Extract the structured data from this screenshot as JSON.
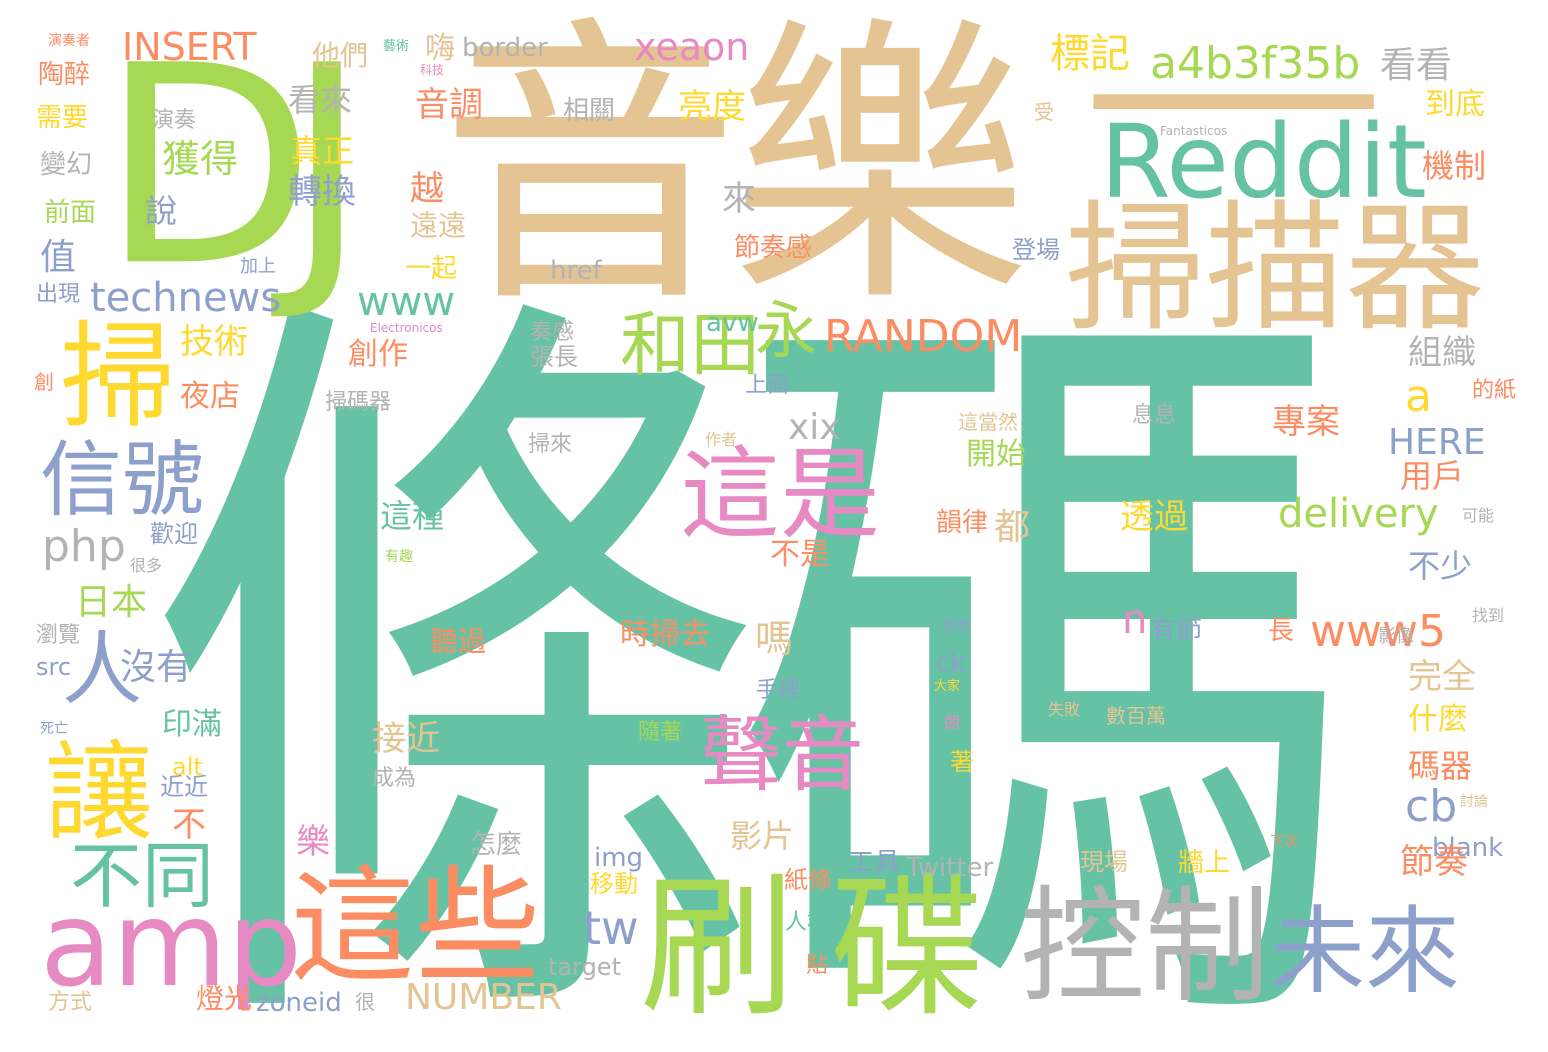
{
  "title": "",
  "colors": {
    "teal": "#66c2a5",
    "tan": "#e5c494",
    "green": "#a6d854",
    "orange": "#fc8d62",
    "blue": "#8da0cb",
    "pink": "#e78ac3",
    "yellow": "#ffd92f",
    "gray": "#b3b3b3"
  },
  "words": {
    "tiaoma": "條碼",
    "yinyue": "音樂",
    "dj": "DJ",
    "yi": "一",
    "saomiaoqi": "掃描器",
    "reddit": "Reddit",
    "shua": "刷",
    "die": "碟",
    "kongzhi": "控制",
    "weilai": "未來",
    "zhexie": "這些",
    "amp": "amp",
    "zheshi": "這是",
    "shengyin": "聲音",
    "sao": "掃",
    "xinhao": "信號",
    "rang": "讓",
    "butong": "不同",
    "ren": "人",
    "hetian": "和田",
    "yong": "永",
    "technews": "technews",
    "www": "www",
    "random": "RANDOM",
    "insert": "INSERT",
    "xeaon": "xeaon",
    "a4b3f35b": "a4b3f35b",
    "kankan": "看看",
    "biaoji": "標記",
    "delivery": "delivery",
    "www5": "www5",
    "number": "NUMBER",
    "php": "php",
    "tw": "tw",
    "cb": "cb",
    "here": "HERE",
    "xix": "xix",
    "a_letter": "a",
    "n_letter": "n",
    "border": "border",
    "href": "href",
    "avw": "avw",
    "target": "target",
    "zoneid": "zoneid",
    "twitter": "Twitter",
    "img": "img",
    "blank": "blank",
    "src": "src",
    "alt": "alt",
    "ck": "ck",
    "fantasticos": "Fantasticos",
    "electronicos": "Electronicos",
    "misc": [
      "演奏者",
      "藝術",
      "陶醉",
      "他們",
      "嗨",
      "需要",
      "科技",
      "演奏",
      "變幻",
      "前面",
      "值",
      "出現",
      "創",
      "加上",
      "看來",
      "音調",
      "真正",
      "轉換",
      "獲得",
      "說",
      "越",
      "遠遠",
      "一起",
      "技術",
      "夜店",
      "創作",
      "日本",
      "沒有",
      "印滿",
      "近近",
      "不",
      "樂",
      "燈光",
      "方式",
      "死亡",
      "瀏覽",
      "歡迎",
      "很多",
      "有趣",
      "相關",
      "亮度",
      "來",
      "節奏感",
      "到底",
      "機制",
      "組織",
      "開始",
      "不是",
      "嗎",
      "都",
      "韻律",
      "透過",
      "專案",
      "用戶",
      "不少",
      "完全",
      "什麼",
      "碼器",
      "節奏",
      "影片",
      "接近",
      "這種",
      "時掃去",
      "聽過",
      "張長",
      "奏感",
      "掃來",
      "怎麼",
      "移動",
      "上面",
      "手裡",
      "人群",
      "紙條",
      "貼",
      "息息",
      "這當然",
      "的紙",
      "有節",
      "長",
      "現場",
      "牆上",
      "數百萬",
      "工具",
      "受",
      "登場",
      "成為",
      "掃碼器",
      "作者",
      "隨著",
      "影像",
      "找到",
      "可能",
      "討論",
      "下次",
      "著",
      "朗",
      "那麼",
      "大家",
      "失敗",
      "很"
    ]
  }
}
